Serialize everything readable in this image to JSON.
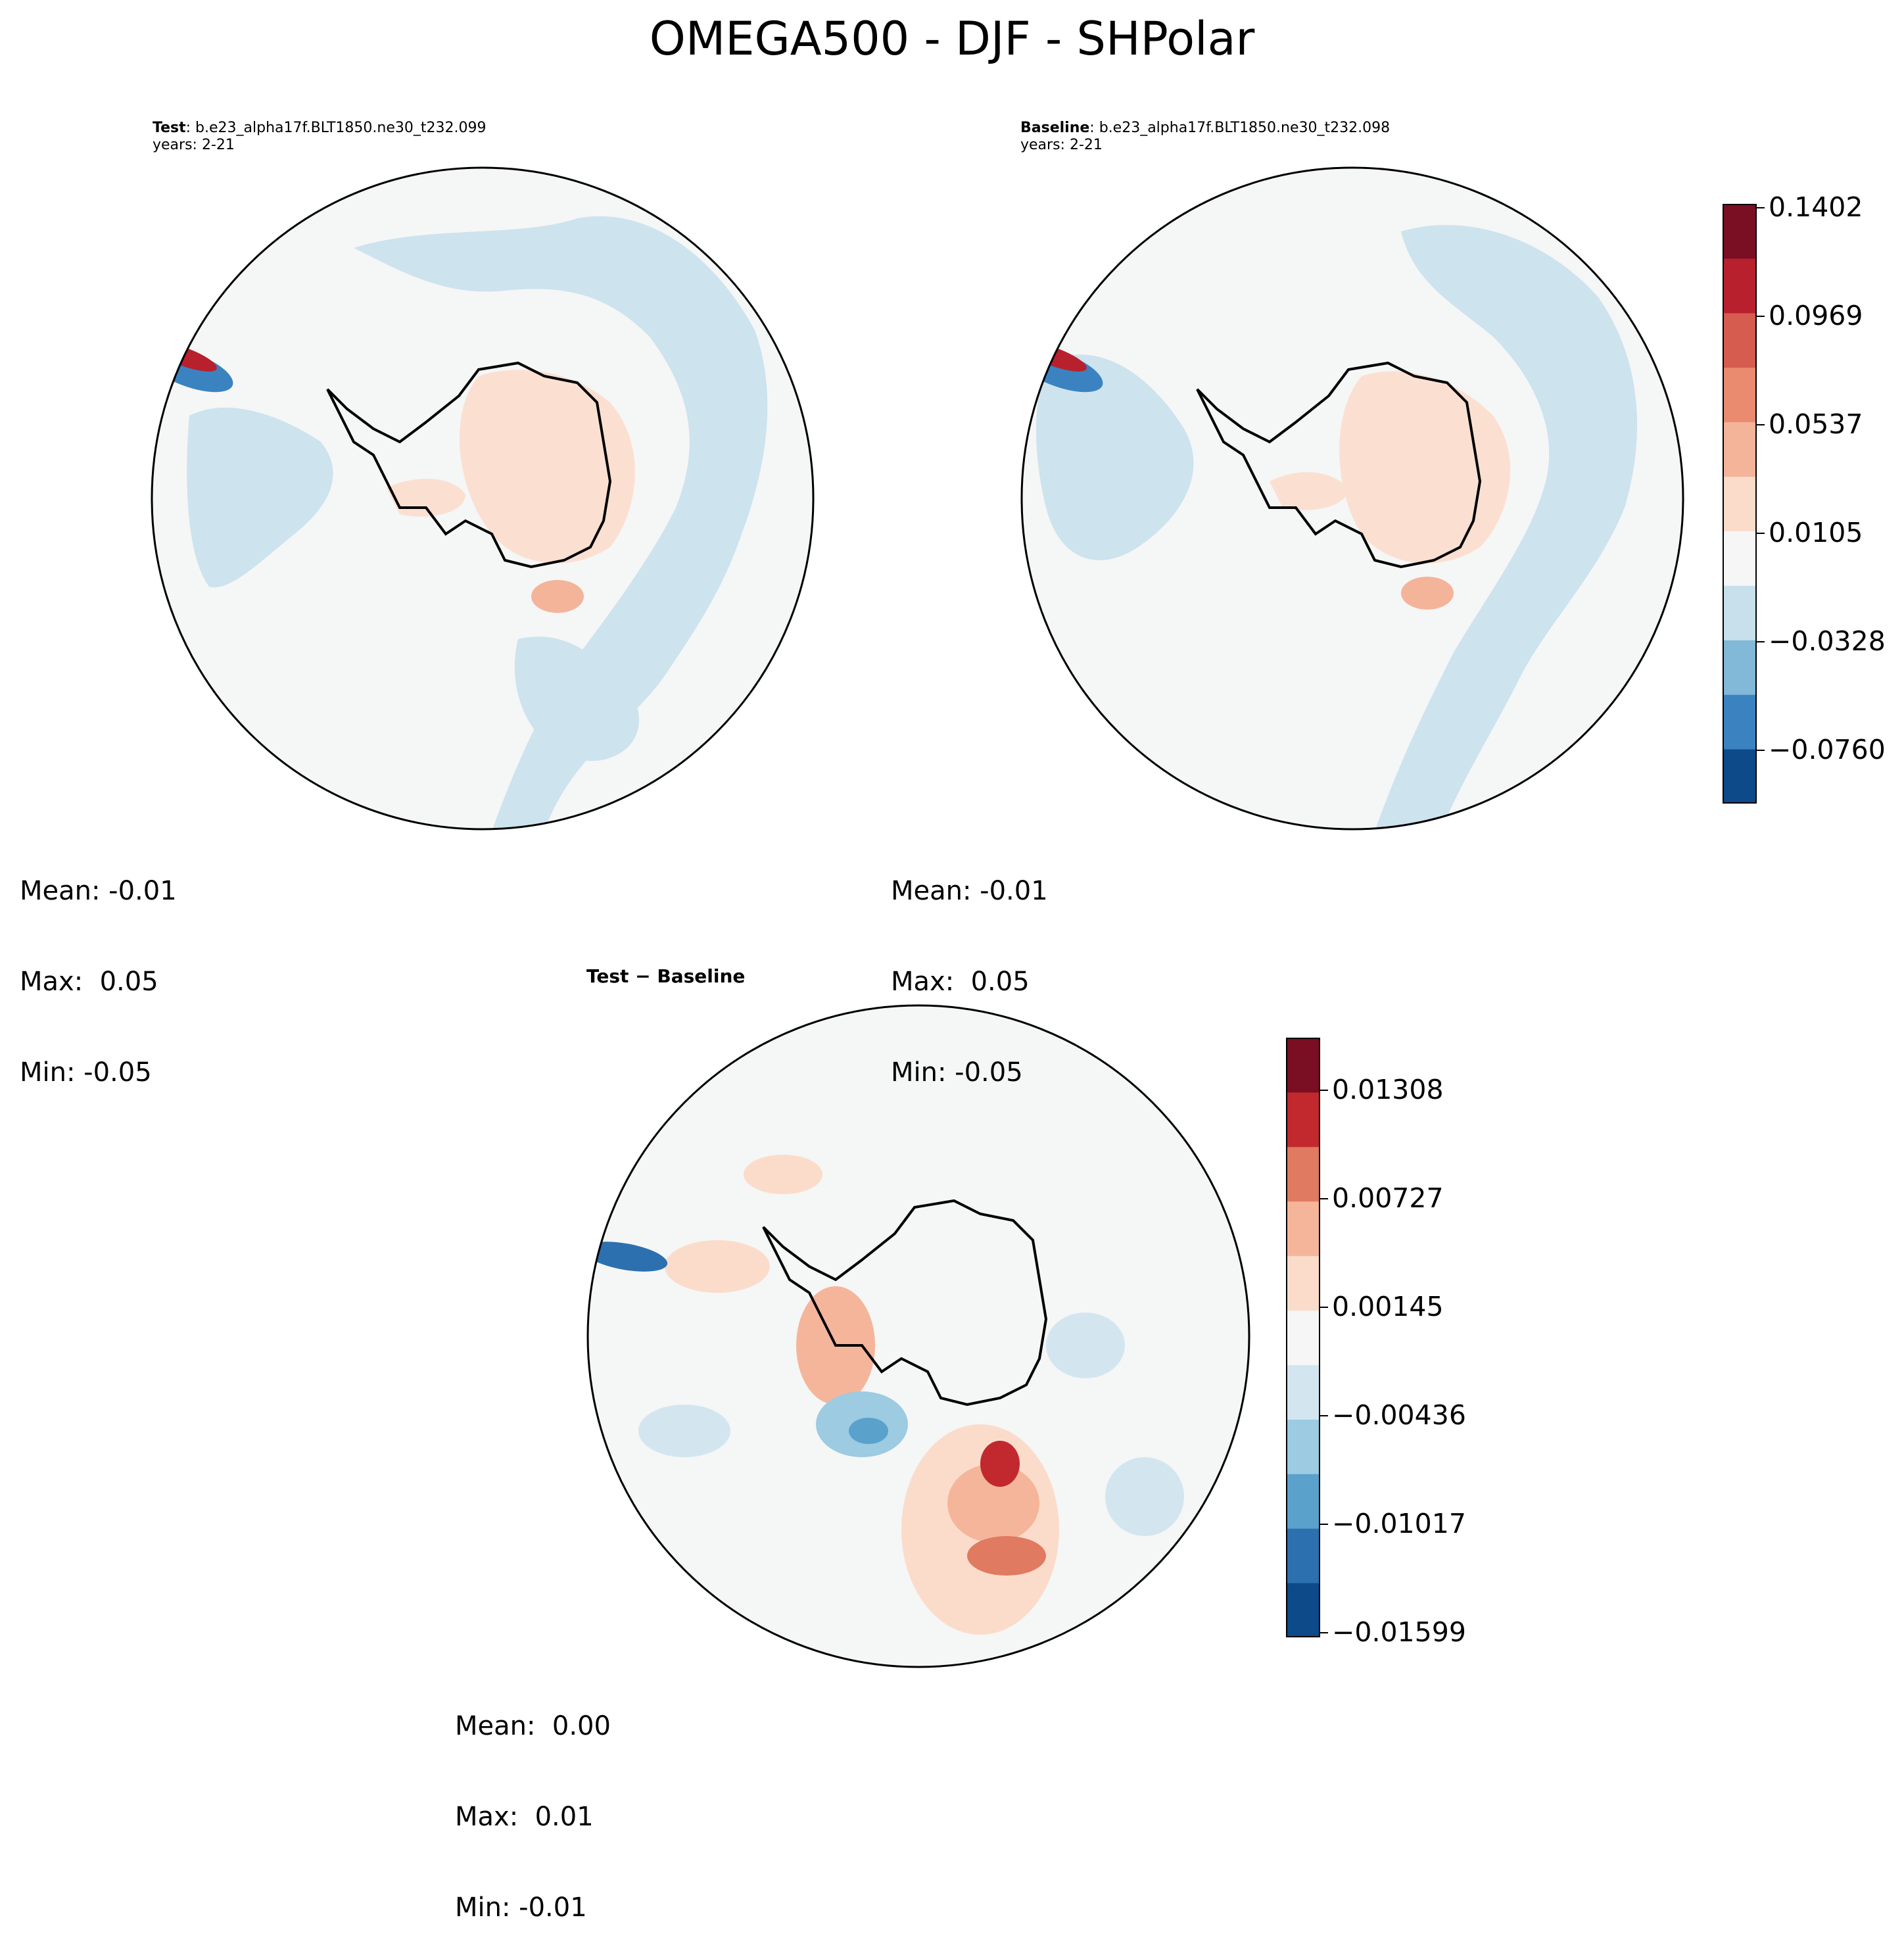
{
  "figure": {
    "title": "OMEGA500 - DJF - SHPolar"
  },
  "panels": {
    "test": {
      "label_bold": "Test",
      "label_rest": ": b.e23_alpha17f.BLT1850.ne30_t232.099",
      "years": "years: 2-21",
      "stats": {
        "mean": "Mean: -0.01",
        "max": "Max:  0.05",
        "min": "Min: -0.05"
      }
    },
    "baseline": {
      "label_bold": "Baseline",
      "label_rest": ": b.e23_alpha17f.BLT1850.ne30_t232.098",
      "years": "years: 2-21",
      "stats": {
        "mean": "Mean: -0.01",
        "max": "Max:  0.05",
        "min": "Min: -0.05"
      }
    },
    "diff": {
      "title": "Test − Baseline",
      "stats": {
        "mean": "Mean:  0.00",
        "max": "Max:  0.01",
        "min": "Min: -0.01"
      }
    }
  },
  "colorbars": {
    "main": {
      "ticks": [
        "0.1402",
        "0.0969",
        "0.0537",
        "0.0105",
        "−0.0328",
        "−0.0760"
      ],
      "colors": [
        "#0c4a8a",
        "#3a83c0",
        "#82b8d8",
        "#c8e0ec",
        "#f6f6f6",
        "#fbdccb",
        "#f4b49a",
        "#ea8b70",
        "#d55c4f",
        "#b8202e",
        "#7a0e22"
      ]
    },
    "diff": {
      "ticks": [
        "0.01308",
        "0.00727",
        "0.00145",
        "−0.00436",
        "−0.01017",
        "−0.01599"
      ],
      "colors": [
        "#0c4a8a",
        "#2c70b0",
        "#5aa1cc",
        "#9ccbe2",
        "#d3e6f0",
        "#f6f6f6",
        "#fbdccb",
        "#f5b59b",
        "#e07a60",
        "#c1292f",
        "#7a0e22"
      ]
    }
  },
  "chart_data": {
    "type": "map",
    "projection": "south polar stereographic",
    "variable": "OMEGA500",
    "season": "DJF",
    "region": "SHPolar",
    "panels": [
      {
        "name": "Test",
        "case": "b.e23_alpha17f.BLT1850.ne30_t232.099",
        "years": "2-21",
        "mean": -0.01,
        "max": 0.05,
        "min": -0.05
      },
      {
        "name": "Baseline",
        "case": "b.e23_alpha17f.BLT1850.ne30_t232.098",
        "years": "2-21",
        "mean": -0.01,
        "max": 0.05,
        "min": -0.05
      },
      {
        "name": "Test − Baseline",
        "mean": 0.0,
        "max": 0.01,
        "min": -0.01
      }
    ],
    "colorbar_main_levels": [
      0.1402,
      0.0969,
      0.0537,
      0.0105,
      -0.0328,
      -0.076
    ],
    "colorbar_diff_levels": [
      0.01308,
      0.00727,
      0.00145,
      -0.00436,
      -0.01017,
      -0.01599
    ],
    "colormap": "RdBu_r"
  }
}
